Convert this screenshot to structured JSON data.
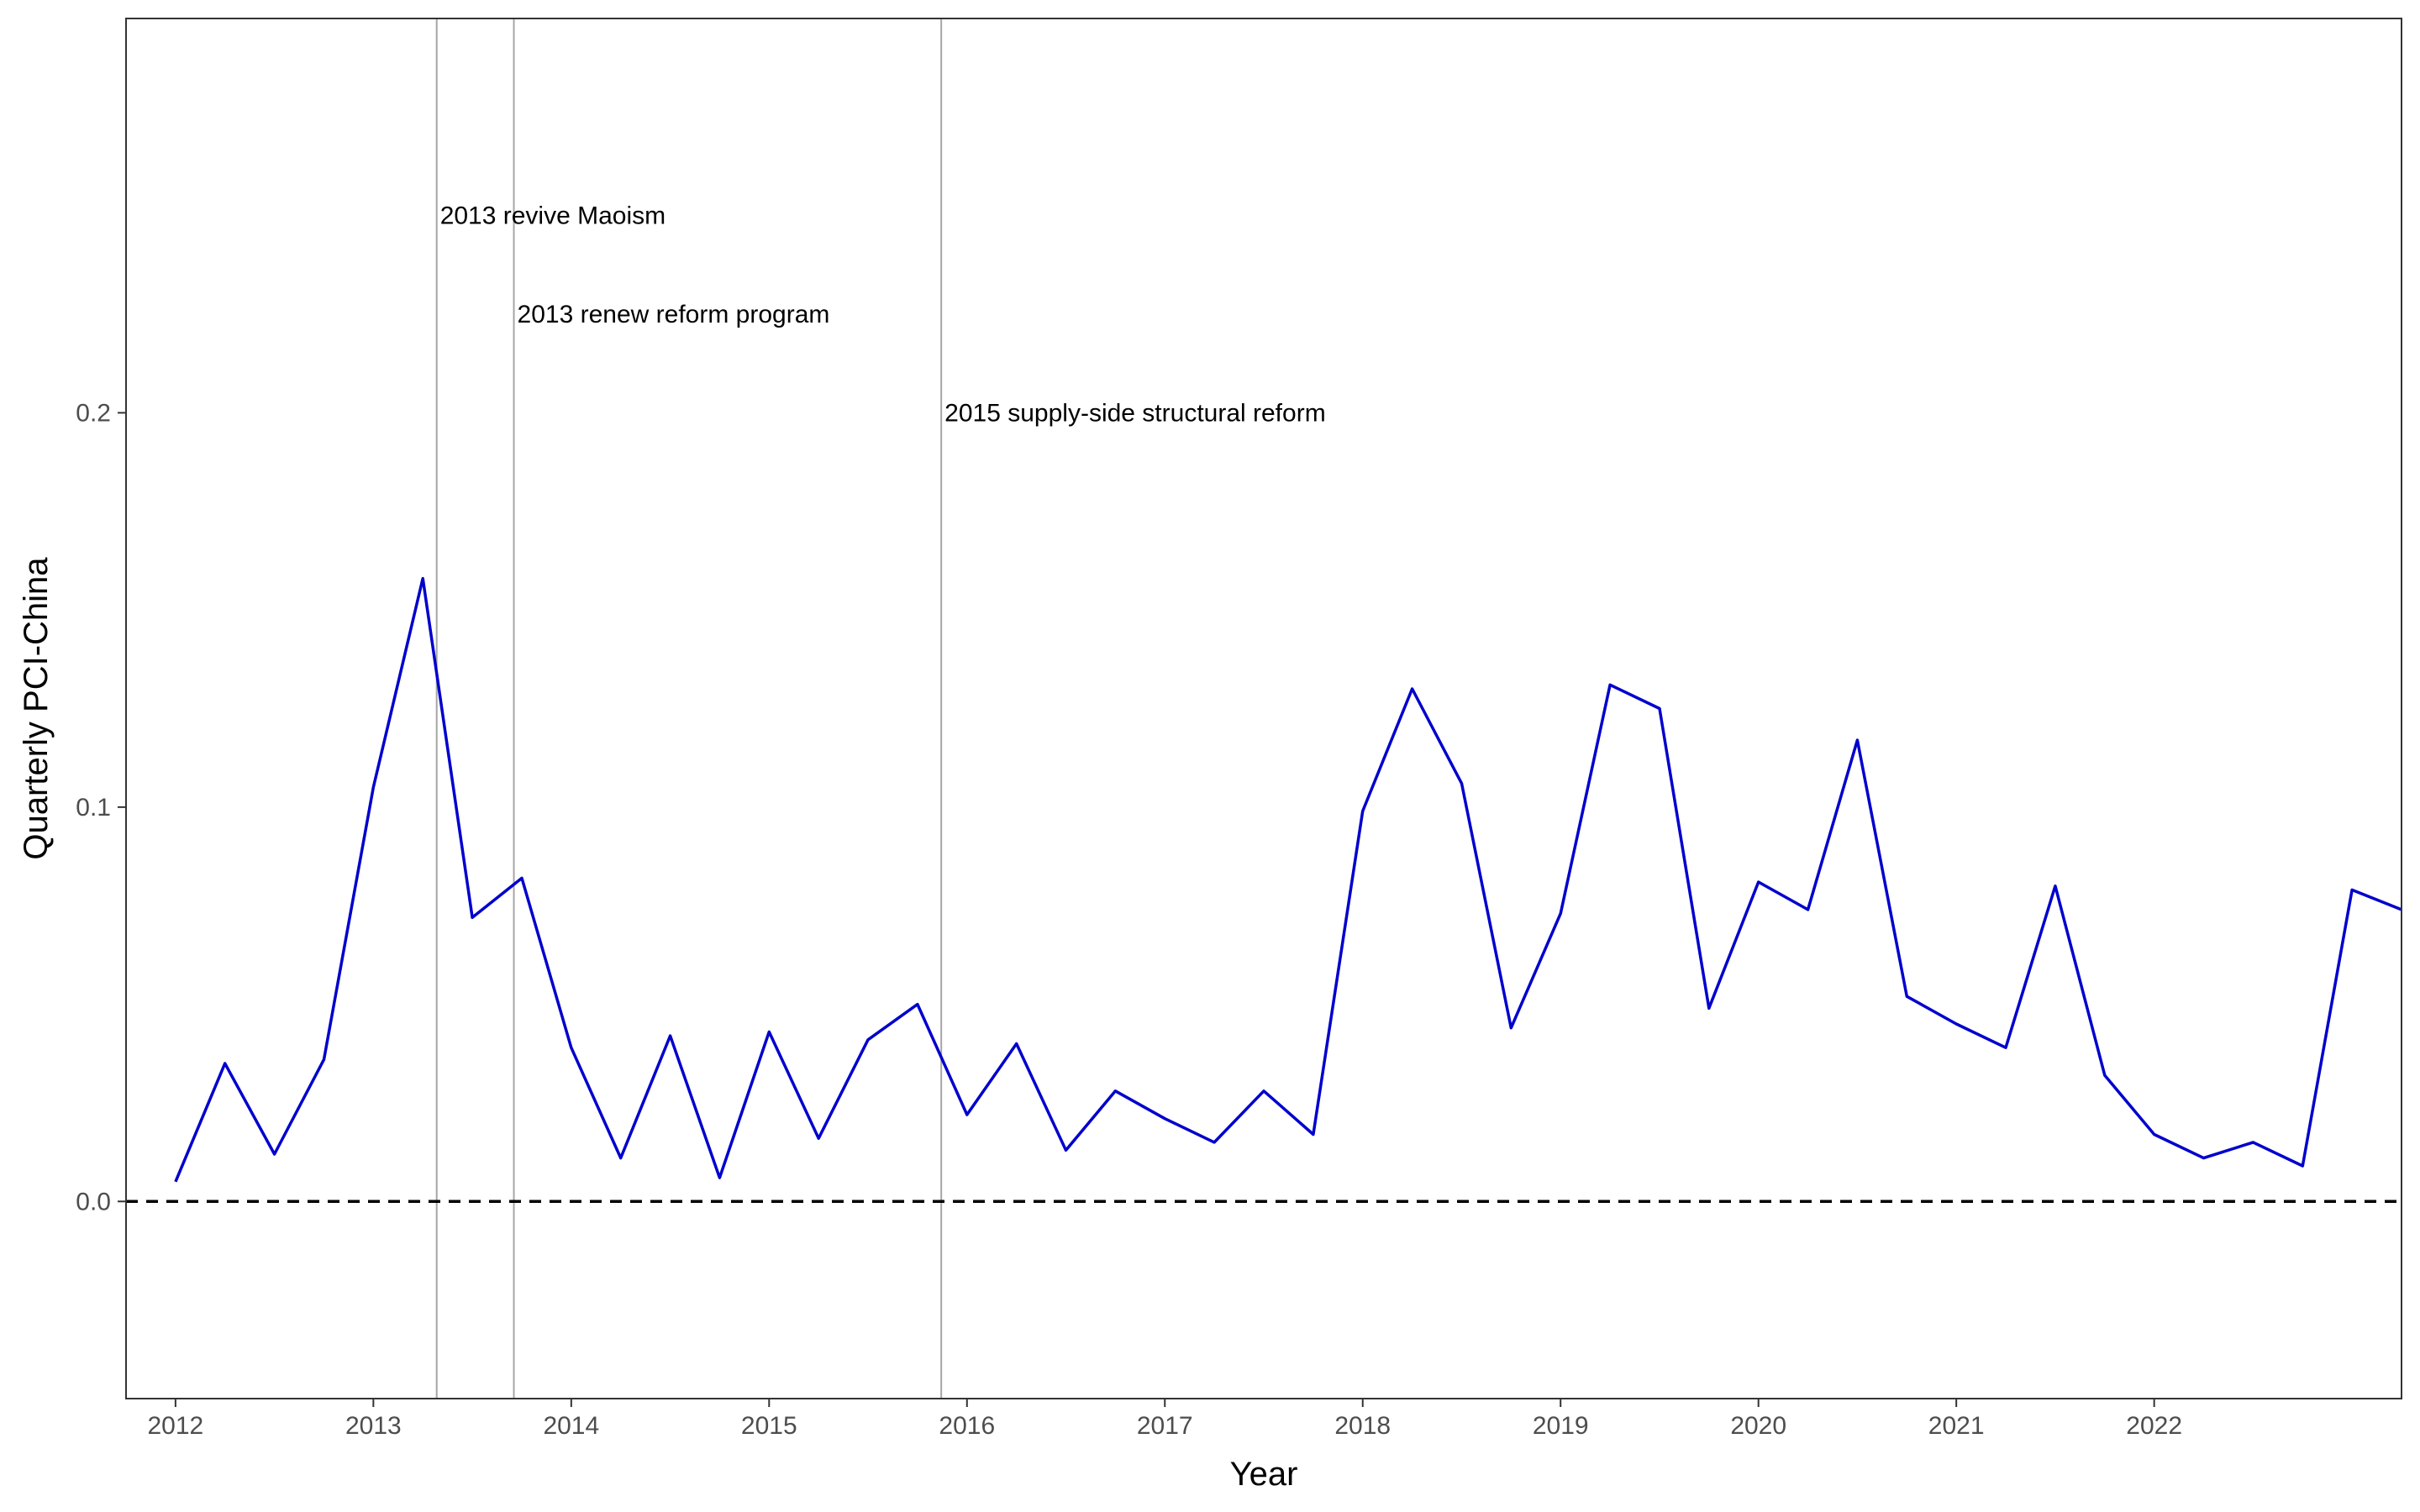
{
  "chart_data": {
    "type": "line",
    "title": "",
    "xlabel": "Year",
    "ylabel": "Quarterly PCI-China",
    "xlim": [
      2011.75,
      2023.25
    ],
    "ylim": [
      -0.05,
      0.3
    ],
    "grid": false,
    "x_ticks": [
      {
        "value": 2012,
        "label": "2012"
      },
      {
        "value": 2013,
        "label": "2013"
      },
      {
        "value": 2014,
        "label": "2014"
      },
      {
        "value": 2015,
        "label": "2015"
      },
      {
        "value": 2016,
        "label": "2016"
      },
      {
        "value": 2017,
        "label": "2017"
      },
      {
        "value": 2018,
        "label": "2018"
      },
      {
        "value": 2019,
        "label": "2019"
      },
      {
        "value": 2020,
        "label": "2020"
      },
      {
        "value": 2021,
        "label": "2021"
      },
      {
        "value": 2022,
        "label": "2022"
      }
    ],
    "y_ticks": [
      {
        "value": 0.0,
        "label": "0.0"
      },
      {
        "value": 0.1,
        "label": "0.1"
      },
      {
        "value": 0.2,
        "label": "0.2"
      }
    ],
    "reference_line": {
      "y": 0.0,
      "style": "dashed",
      "color": "#000000"
    },
    "series": [
      {
        "color": "#0000cd",
        "x": [
          2012.0,
          2012.25,
          2012.5,
          2012.75,
          2013.0,
          2013.25,
          2013.5,
          2013.75,
          2014.0,
          2014.25,
          2014.5,
          2014.75,
          2015.0,
          2015.25,
          2015.5,
          2015.75,
          2016.0,
          2016.25,
          2016.5,
          2016.75,
          2017.0,
          2017.25,
          2017.5,
          2017.75,
          2018.0,
          2018.25,
          2018.5,
          2018.75,
          2019.0,
          2019.25,
          2019.5,
          2019.75,
          2020.0,
          2020.25,
          2020.5,
          2020.75,
          2021.0,
          2021.25,
          2021.5,
          2021.75,
          2022.0,
          2022.25,
          2022.5,
          2022.75,
          2023.0,
          2023.25
        ],
        "values": [
          0.005,
          0.035,
          0.012,
          0.036,
          0.105,
          0.158,
          0.072,
          0.082,
          0.039,
          0.011,
          0.042,
          0.006,
          0.043,
          0.016,
          0.041,
          0.05,
          0.022,
          0.04,
          0.013,
          0.028,
          0.021,
          0.015,
          0.028,
          0.017,
          0.099,
          0.13,
          0.106,
          0.044,
          0.073,
          0.131,
          0.125,
          0.049,
          0.081,
          0.074,
          0.117,
          0.052,
          0.045,
          0.039,
          0.08,
          0.032,
          0.017,
          0.011,
          0.015,
          0.009,
          0.079,
          0.074
        ]
      }
    ],
    "annotations": [
      {
        "x": 2013.32,
        "y": 0.25,
        "text": "2013 revive Maoism"
      },
      {
        "x": 2013.71,
        "y": 0.225,
        "text": "2013 renew reform program"
      },
      {
        "x": 2015.87,
        "y": 0.2,
        "text": "2015 supply-side structural reform"
      }
    ],
    "annotation_line_color": "#a6a6a6",
    "axis_color": "#333333"
  }
}
